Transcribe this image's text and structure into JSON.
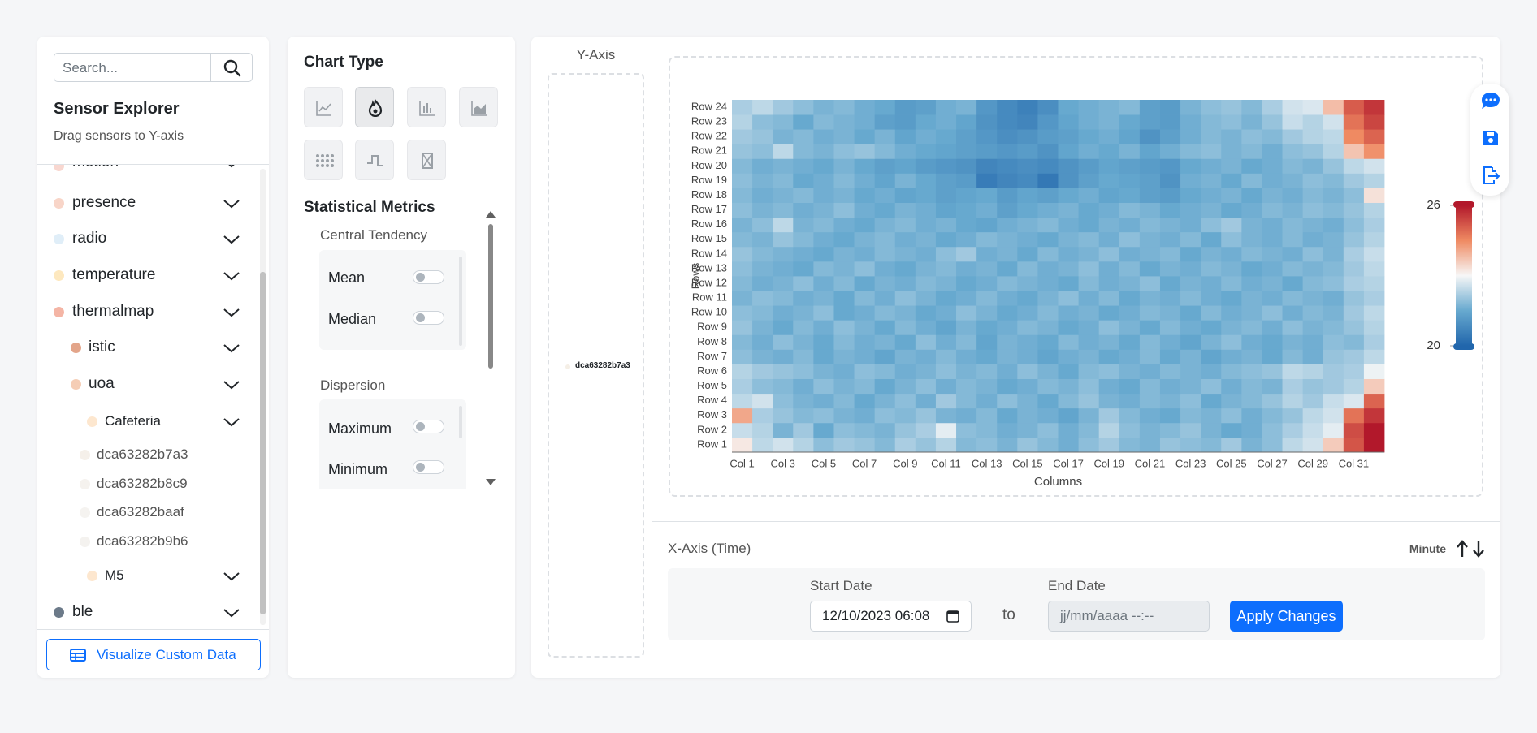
{
  "sidebar": {
    "search_placeholder": "Search...",
    "title": "Sensor Explorer",
    "subtitle": "Drag sensors to Y-axis",
    "items": [
      "motion",
      "presence",
      "radio",
      "temperature",
      "thermalmap",
      "istic",
      "uoa",
      "Cafeteria",
      "dca63282b7a3",
      "dca63282b8c9",
      "dca63282baaf",
      "dca63282b9b6",
      "M5",
      "ble"
    ],
    "button": "Visualize Custom Data"
  },
  "chart_type_panel": {
    "title": "Chart Type",
    "metrics_title": "Statistical Metrics",
    "groups": [
      {
        "title": "Central Tendency",
        "metrics": [
          "Mean",
          "Median"
        ]
      },
      {
        "title": "Dispersion",
        "metrics": [
          "Maximum",
          "Minimum"
        ]
      }
    ]
  },
  "y_axis_panel": {
    "title": "Y-Axis",
    "sensor": "dca63282b7a3"
  },
  "x_axis_panel": {
    "title": "X-Axis (Time)",
    "resolution": "Minute",
    "start_label": "Start Date",
    "start_value": "12/10/2023 06:08",
    "to": "to",
    "end_label": "End Date",
    "end_placeholder": "jj/mm/aaaa --:--",
    "apply": "Apply Changes"
  },
  "chart_data": {
    "type": "heatmap",
    "x_label": "Columns",
    "y_label": "Rows",
    "x": [
      "Col 1",
      null,
      "Col 3",
      null,
      "Col 5",
      null,
      "Col 7",
      null,
      "Col 9",
      null,
      "Col 11",
      null,
      "Col 13",
      null,
      "Col 15",
      null,
      "Col 17",
      null,
      "Col 19",
      null,
      "Col 21",
      null,
      "Col 23",
      null,
      "Col 25",
      null,
      "Col 27",
      null,
      "Col 29",
      null,
      "Col 31",
      null
    ],
    "y": [
      "Row 1",
      "Row 2",
      "Row 3",
      "Row 4",
      "Row 5",
      "Row 6",
      "Row 7",
      "Row 8",
      "Row 9",
      "Row 10",
      "Row 11",
      "Row 12",
      "Row 13",
      "Row 14",
      "Row 15",
      "Row 16",
      "Row 17",
      "Row 18",
      "Row 19",
      "Row 20",
      "Row 21",
      "Row 22",
      "Row 23",
      "Row 24"
    ],
    "z": [
      [
        23.2,
        22.4,
        22.6,
        22.3,
        21.9,
        22.1,
        22.0,
        21.8,
        22.2,
        22.0,
        22.3,
        21.8,
        21.9,
        21.7,
        22.0,
        21.8,
        21.6,
        21.9,
        22.1,
        21.8,
        21.7,
        22.0,
        21.9,
        21.8,
        22.1,
        21.7,
        21.9,
        22.4,
        22.6,
        23.6,
        25.2,
        26.0
      ],
      [
        22.5,
        22.3,
        21.7,
        22.1,
        21.5,
        21.9,
        21.8,
        21.7,
        22.0,
        22.2,
        22.8,
        21.9,
        21.8,
        21.6,
        21.7,
        21.9,
        21.6,
        21.8,
        22.3,
        21.9,
        21.7,
        21.8,
        22.0,
        21.7,
        21.5,
        21.6,
        21.9,
        22.2,
        22.5,
        22.8,
        25.3,
        26.0
      ],
      [
        24.1,
        22.2,
        22.0,
        21.8,
        21.9,
        21.7,
        21.6,
        21.9,
        21.8,
        22.0,
        21.7,
        21.6,
        21.8,
        21.5,
        21.7,
        21.6,
        21.4,
        21.7,
        22.1,
        21.8,
        21.6,
        21.5,
        21.8,
        21.7,
        21.9,
        21.6,
        21.8,
        22.0,
        22.4,
        22.6,
        24.8,
        25.6
      ],
      [
        22.4,
        22.6,
        21.9,
        21.7,
        21.6,
        21.8,
        21.5,
        21.7,
        21.9,
        21.6,
        22.1,
        21.8,
        21.6,
        21.9,
        21.7,
        21.5,
        21.8,
        22.0,
        21.7,
        21.6,
        21.8,
        21.7,
        21.9,
        21.5,
        21.7,
        21.8,
        22.0,
        22.3,
        22.1,
        22.5,
        22.7,
        25.0
      ],
      [
        22.2,
        21.9,
        21.8,
        21.6,
        21.9,
        21.7,
        21.8,
        21.5,
        21.7,
        21.9,
        21.6,
        21.8,
        21.7,
        21.5,
        21.6,
        21.8,
        21.7,
        21.9,
        21.6,
        21.5,
        21.8,
        21.6,
        21.7,
        21.9,
        21.6,
        21.8,
        21.7,
        22.2,
        22.0,
        22.1,
        22.3,
        23.6
      ],
      [
        22.3,
        22.1,
        22.0,
        21.9,
        21.7,
        21.6,
        21.9,
        21.8,
        21.6,
        21.7,
        21.9,
        21.7,
        21.8,
        21.6,
        21.9,
        21.7,
        21.5,
        21.8,
        21.9,
        21.7,
        21.6,
        21.8,
        21.7,
        21.6,
        21.8,
        21.9,
        22.0,
        22.4,
        22.3,
        22.1,
        22.2,
        22.9
      ],
      [
        21.9,
        21.7,
        21.6,
        21.8,
        21.5,
        21.7,
        21.6,
        21.4,
        21.7,
        21.6,
        21.8,
        21.6,
        21.5,
        21.7,
        21.6,
        21.4,
        21.6,
        21.7,
        21.5,
        21.6,
        21.8,
        21.5,
        21.7,
        21.4,
        21.6,
        21.7,
        21.5,
        21.8,
        21.6,
        22.0,
        22.1,
        22.4
      ],
      [
        21.8,
        21.6,
        21.9,
        21.7,
        21.5,
        21.8,
        21.6,
        21.7,
        21.5,
        21.9,
        21.6,
        21.8,
        21.4,
        21.7,
        21.6,
        21.5,
        21.8,
        21.6,
        21.7,
        21.5,
        21.8,
        21.6,
        21.4,
        21.7,
        21.9,
        21.6,
        21.5,
        21.7,
        21.6,
        21.9,
        21.8,
        22.2
      ],
      [
        22.0,
        21.7,
        21.5,
        21.8,
        21.6,
        21.9,
        21.7,
        21.5,
        21.8,
        21.6,
        21.4,
        21.7,
        21.5,
        21.6,
        21.8,
        21.7,
        21.5,
        21.6,
        21.9,
        21.7,
        21.5,
        21.8,
        21.6,
        21.5,
        21.7,
        21.8,
        21.6,
        21.9,
        21.7,
        21.8,
        22.0,
        22.3
      ],
      [
        21.9,
        21.8,
        21.6,
        21.7,
        21.9,
        21.5,
        21.6,
        21.8,
        21.7,
        21.5,
        21.6,
        21.9,
        21.7,
        21.5,
        21.6,
        21.8,
        21.6,
        21.7,
        21.5,
        21.6,
        21.8,
        21.7,
        21.5,
        21.8,
        21.6,
        21.7,
        21.9,
        21.6,
        21.8,
        21.7,
        22.1,
        22.4
      ],
      [
        21.7,
        21.9,
        21.8,
        21.6,
        21.7,
        21.5,
        21.8,
        21.6,
        21.9,
        21.7,
        21.5,
        21.6,
        21.8,
        21.6,
        21.5,
        21.7,
        21.9,
        21.6,
        21.8,
        21.5,
        21.7,
        21.6,
        21.8,
        21.6,
        21.5,
        21.7,
        21.6,
        21.8,
        21.7,
        21.6,
        22.0,
        22.2
      ],
      [
        21.8,
        21.6,
        21.7,
        21.9,
        21.6,
        21.8,
        21.5,
        21.7,
        21.6,
        21.8,
        21.7,
        21.5,
        21.6,
        21.8,
        21.7,
        21.6,
        21.5,
        21.8,
        21.6,
        21.7,
        21.9,
        21.5,
        21.7,
        21.6,
        21.8,
        21.6,
        21.7,
        21.5,
        21.8,
        21.9,
        22.2,
        22.3
      ],
      [
        21.9,
        21.7,
        21.6,
        21.5,
        21.8,
        21.7,
        21.9,
        21.6,
        21.5,
        21.7,
        21.8,
        21.6,
        21.7,
        21.5,
        21.8,
        21.6,
        21.7,
        21.9,
        21.6,
        21.8,
        21.5,
        21.7,
        21.6,
        21.8,
        21.7,
        21.5,
        21.6,
        21.8,
        21.7,
        21.8,
        22.1,
        22.4
      ],
      [
        22.0,
        21.8,
        21.7,
        21.6,
        21.5,
        21.7,
        21.6,
        21.8,
        21.7,
        21.6,
        21.9,
        22.1,
        21.6,
        21.7,
        21.5,
        21.8,
        21.6,
        21.7,
        21.9,
        21.6,
        21.7,
        21.8,
        21.5,
        21.7,
        21.6,
        21.8,
        21.7,
        21.6,
        21.9,
        21.7,
        22.2,
        22.5
      ],
      [
        21.8,
        21.7,
        22.0,
        21.8,
        21.6,
        21.5,
        21.7,
        21.8,
        21.6,
        21.7,
        21.5,
        21.6,
        21.8,
        21.7,
        21.6,
        21.5,
        21.7,
        21.8,
        21.6,
        21.9,
        21.7,
        21.6,
        21.8,
        21.5,
        21.9,
        21.7,
        21.6,
        21.8,
        21.6,
        21.7,
        22.0,
        22.3
      ],
      [
        21.7,
        21.9,
        22.4,
        21.7,
        21.8,
        21.6,
        21.5,
        21.7,
        21.8,
        21.6,
        21.7,
        21.5,
        21.4,
        21.6,
        21.7,
        21.8,
        21.6,
        21.5,
        21.7,
        21.6,
        21.8,
        21.7,
        21.6,
        21.9,
        22.1,
        21.7,
        21.6,
        21.8,
        21.7,
        21.6,
        21.9,
        22.2
      ],
      [
        21.9,
        21.7,
        21.8,
        21.6,
        21.7,
        21.9,
        21.6,
        21.5,
        21.7,
        21.6,
        21.4,
        21.5,
        21.6,
        21.3,
        21.5,
        21.6,
        21.7,
        21.5,
        21.6,
        21.8,
        21.7,
        21.5,
        21.6,
        21.7,
        21.5,
        21.6,
        21.8,
        21.7,
        21.9,
        21.8,
        22.0,
        22.3
      ],
      [
        21.8,
        21.6,
        21.7,
        21.8,
        21.6,
        21.7,
        21.5,
        21.6,
        21.4,
        21.5,
        21.3,
        21.4,
        21.5,
        21.2,
        21.4,
        21.3,
        21.5,
        21.6,
        21.4,
        21.5,
        21.3,
        21.2,
        21.5,
        21.6,
        21.7,
        21.5,
        21.7,
        21.6,
        21.8,
        21.7,
        21.9,
        23.3
      ],
      [
        21.9,
        21.7,
        21.8,
        21.5,
        21.6,
        21.8,
        21.6,
        21.4,
        21.7,
        21.5,
        21.3,
        21.2,
        20.5,
        20.7,
        20.8,
        20.4,
        21.0,
        21.3,
        21.5,
        21.4,
        21.3,
        21.0,
        21.6,
        21.7,
        21.5,
        21.8,
        21.6,
        21.7,
        21.9,
        21.8,
        22.1,
        22.3
      ],
      [
        21.8,
        21.6,
        21.7,
        21.6,
        21.5,
        21.7,
        21.5,
        21.3,
        21.4,
        21.2,
        21.1,
        21.0,
        20.7,
        20.8,
        20.9,
        20.8,
        21.0,
        21.2,
        21.4,
        21.3,
        21.2,
        21.1,
        21.5,
        21.6,
        21.7,
        21.5,
        21.6,
        21.8,
        21.7,
        22.0,
        22.4,
        22.6
      ],
      [
        22.0,
        21.9,
        22.4,
        21.8,
        21.7,
        21.9,
        22.0,
        21.8,
        21.6,
        21.5,
        21.4,
        21.3,
        21.2,
        21.1,
        21.2,
        21.0,
        21.4,
        21.6,
        21.5,
        21.7,
        21.4,
        21.6,
        21.8,
        21.9,
        21.7,
        21.8,
        21.6,
        21.9,
        22.0,
        22.3,
        23.7,
        24.4
      ],
      [
        22.1,
        22.0,
        21.7,
        21.8,
        21.6,
        21.7,
        21.5,
        21.7,
        21.4,
        21.6,
        21.5,
        21.3,
        21.1,
        20.9,
        21.0,
        21.2,
        21.3,
        21.5,
        21.6,
        21.4,
        21.0,
        21.3,
        21.6,
        21.8,
        21.7,
        21.9,
        21.8,
        22.1,
        22.3,
        22.4,
        24.5,
        25.0
      ],
      [
        22.3,
        21.9,
        21.8,
        21.5,
        21.8,
        21.7,
        21.6,
        21.3,
        21.2,
        21.5,
        21.6,
        21.4,
        21.0,
        20.8,
        20.7,
        21.1,
        21.4,
        21.6,
        21.7,
        21.5,
        21.3,
        21.2,
        21.6,
        21.8,
        21.9,
        21.7,
        22.0,
        22.5,
        22.3,
        22.6,
        24.8,
        25.4
      ],
      [
        22.2,
        22.4,
        22.1,
        21.9,
        21.7,
        21.8,
        21.6,
        21.5,
        21.2,
        21.3,
        21.6,
        21.7,
        21.1,
        20.8,
        20.6,
        20.9,
        21.5,
        21.6,
        21.7,
        21.8,
        21.3,
        21.2,
        21.7,
        21.9,
        22.0,
        21.8,
        22.2,
        22.6,
        22.7,
        23.8,
        25.1,
        25.6
      ]
    ],
    "zlim": [
      20,
      26
    ],
    "zticks": [
      20,
      26
    ],
    "colorscale": [
      "#2166ac",
      "#67a9cf",
      "#f7f7f7",
      "#ef8a62",
      "#b2182b"
    ]
  }
}
